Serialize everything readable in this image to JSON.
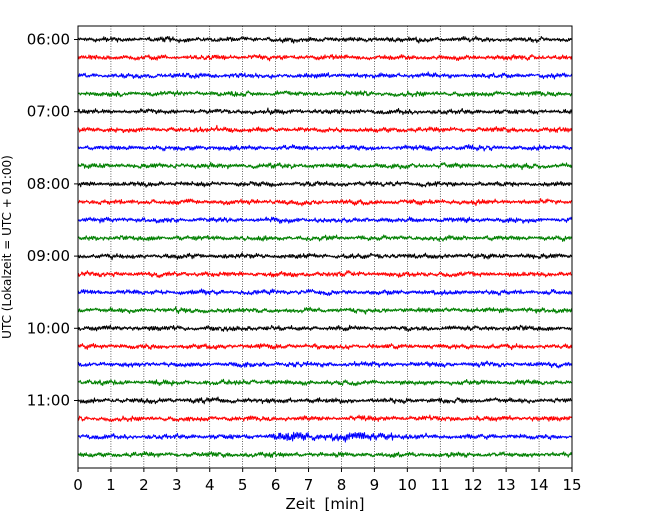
{
  "chart_data": {
    "type": "line",
    "title": "",
    "xlabel": "Zeit  [min]",
    "ylabel": "UTC (Lokalzeit = UTC + 01:00)",
    "xlim": [
      0,
      15
    ],
    "x_ticks": [
      "0",
      "1",
      "2",
      "3",
      "4",
      "5",
      "6",
      "7",
      "8",
      "9",
      "10",
      "11",
      "12",
      "13",
      "14",
      "15"
    ],
    "y_tick_labels": [
      "06:00",
      "07:00",
      "08:00",
      "09:00",
      "10:00",
      "11:00"
    ],
    "traces_per_hour": 4,
    "minutes_per_trace": 15,
    "trace_colors": [
      "#000000",
      "#ff0000",
      "#0000ff",
      "#008000"
    ],
    "grid": "vertical dotted lines at each minute",
    "traces": [
      {
        "start": "06:00",
        "color": "#000000"
      },
      {
        "start": "06:15",
        "color": "#ff0000"
      },
      {
        "start": "06:30",
        "color": "#0000ff"
      },
      {
        "start": "06:45",
        "color": "#008000"
      },
      {
        "start": "07:00",
        "color": "#000000"
      },
      {
        "start": "07:15",
        "color": "#ff0000"
      },
      {
        "start": "07:30",
        "color": "#0000ff"
      },
      {
        "start": "07:45",
        "color": "#008000"
      },
      {
        "start": "08:00",
        "color": "#000000"
      },
      {
        "start": "08:15",
        "color": "#ff0000"
      },
      {
        "start": "08:30",
        "color": "#0000ff"
      },
      {
        "start": "08:45",
        "color": "#008000"
      },
      {
        "start": "09:00",
        "color": "#000000"
      },
      {
        "start": "09:15",
        "color": "#ff0000"
      },
      {
        "start": "09:30",
        "color": "#0000ff"
      },
      {
        "start": "09:45",
        "color": "#008000"
      },
      {
        "start": "10:00",
        "color": "#000000"
      },
      {
        "start": "10:15",
        "color": "#ff0000"
      },
      {
        "start": "10:30",
        "color": "#0000ff"
      },
      {
        "start": "10:45",
        "color": "#008000"
      },
      {
        "start": "11:00",
        "color": "#000000"
      },
      {
        "start": "11:15",
        "color": "#ff0000"
      },
      {
        "start": "11:30",
        "color": "#0000ff"
      },
      {
        "start": "11:45",
        "color": "#008000"
      }
    ]
  }
}
